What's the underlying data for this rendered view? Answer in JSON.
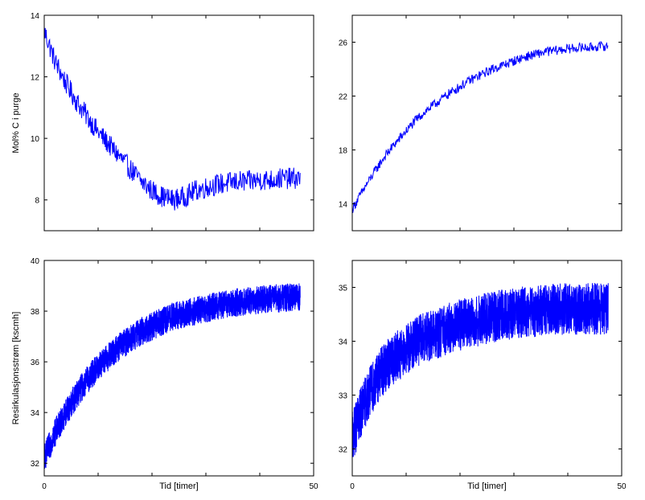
{
  "chart_data": [
    {
      "type": "line",
      "panel": "top-left",
      "xlabel": "",
      "ylabel": "Mol% C i purge",
      "xlim": [
        0,
        50
      ],
      "ylim": [
        7,
        14
      ],
      "yticks": [
        8,
        10,
        12,
        14
      ],
      "xticks": [],
      "line_color": "#0000ff",
      "noise": 0.35,
      "series": [
        {
          "x": [
            0,
            2,
            4,
            6,
            8,
            10,
            12,
            14,
            16,
            18,
            20,
            22,
            24,
            26,
            28,
            30,
            32,
            34,
            36,
            38,
            40,
            42,
            44,
            46,
            47.5
          ],
          "y": [
            13.5,
            12.5,
            11.8,
            11.2,
            10.7,
            10.2,
            9.8,
            9.4,
            9.0,
            8.6,
            8.3,
            8.1,
            8.0,
            8.1,
            8.3,
            8.4,
            8.5,
            8.55,
            8.6,
            8.6,
            8.65,
            8.65,
            8.7,
            8.7,
            8.7
          ]
        }
      ]
    },
    {
      "type": "line",
      "panel": "top-right",
      "xlabel": "",
      "ylabel": "",
      "xlim": [
        0,
        50
      ],
      "ylim": [
        12,
        28
      ],
      "yticks": [
        14,
        18,
        22,
        26
      ],
      "xticks": [],
      "line_color": "#0000ff",
      "noise": 0.35,
      "series": [
        {
          "x": [
            0,
            2,
            4,
            6,
            8,
            10,
            12,
            14,
            16,
            18,
            20,
            22,
            24,
            26,
            28,
            30,
            32,
            34,
            36,
            38,
            40,
            42,
            44,
            46,
            47.5
          ],
          "y": [
            13.6,
            15.0,
            16.3,
            17.5,
            18.5,
            19.4,
            20.3,
            21.0,
            21.6,
            22.2,
            22.7,
            23.2,
            23.6,
            24.0,
            24.3,
            24.6,
            24.9,
            25.1,
            25.3,
            25.4,
            25.5,
            25.6,
            25.6,
            25.7,
            25.7
          ]
        }
      ]
    },
    {
      "type": "line",
      "panel": "bottom-left",
      "xlabel": "Tid [timer]",
      "ylabel": "Resirkulasjonsstrøm [kscmh]",
      "xlim": [
        0,
        50
      ],
      "ylim": [
        31.5,
        40
      ],
      "yticks": [
        32,
        34,
        36,
        38,
        40
      ],
      "xticks": [
        0,
        50
      ],
      "line_color": "#0000ff",
      "noise": 0.35,
      "series": [
        {
          "x": [
            0,
            2,
            4,
            6,
            8,
            10,
            12,
            14,
            16,
            18,
            20,
            22,
            24,
            26,
            28,
            30,
            32,
            34,
            36,
            38,
            40,
            42,
            44,
            46,
            47.5
          ],
          "y": [
            32.2,
            33.2,
            34.0,
            34.7,
            35.3,
            35.8,
            36.2,
            36.6,
            36.9,
            37.2,
            37.4,
            37.6,
            37.8,
            37.9,
            38.0,
            38.1,
            38.2,
            38.3,
            38.35,
            38.4,
            38.45,
            38.5,
            38.5,
            38.55,
            38.55
          ]
        }
      ]
    },
    {
      "type": "line",
      "panel": "bottom-right",
      "xlabel": "Tid [timer]",
      "ylabel": "",
      "xlim": [
        0,
        50
      ],
      "ylim": [
        31.5,
        35.5
      ],
      "yticks": [
        32,
        33,
        34,
        35
      ],
      "xticks": [
        0,
        50
      ],
      "line_color": "#0000ff",
      "noise": 0.3,
      "series": [
        {
          "x": [
            0,
            2,
            4,
            6,
            8,
            10,
            12,
            14,
            16,
            18,
            20,
            22,
            24,
            26,
            28,
            30,
            32,
            34,
            36,
            38,
            40,
            42,
            44,
            46,
            47.5
          ],
          "y": [
            32.2,
            32.8,
            33.2,
            33.5,
            33.7,
            33.85,
            34.0,
            34.1,
            34.15,
            34.25,
            34.3,
            34.35,
            34.4,
            34.45,
            34.5,
            34.5,
            34.55,
            34.55,
            34.6,
            34.6,
            34.6,
            34.6,
            34.6,
            34.6,
            34.6
          ]
        }
      ]
    }
  ]
}
